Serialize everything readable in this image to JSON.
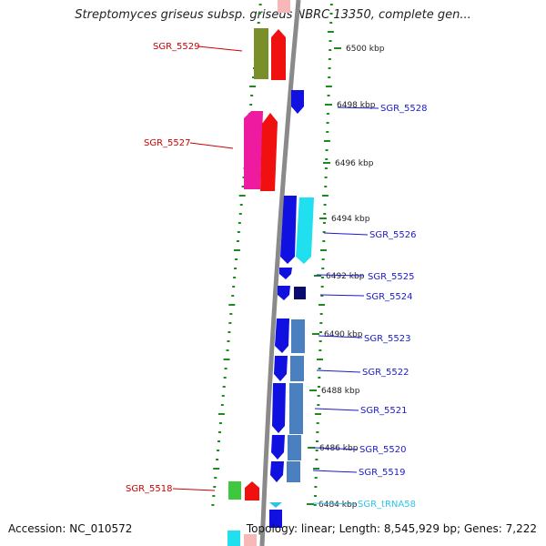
{
  "header": {
    "title": "Streptomyces griseus subsp. griseus NBRC 13350, complete gen..."
  },
  "footer": {
    "accession": "Accession: NC_010572",
    "summary": "Topology: linear; Length: 8,545,929 bp; Genes: 7,222"
  },
  "colors": {
    "backbone": "#8a8a8a",
    "tick": "#1f8a1f",
    "label_forward": "#cc0000",
    "label_reverse": "#1a1acc",
    "label_trna": "#2ec4e8"
  },
  "scale": {
    "unit": "kbp",
    "labels": [
      "6500 kbp",
      "6498 kbp",
      "6496 kbp",
      "6494 kbp",
      "6492 kbp",
      "6490 kbp",
      "6488 kbp",
      "6486 kbp",
      "6484 kbp"
    ]
  },
  "genes": [
    {
      "label": "SGR_5529",
      "strand": "+",
      "color": "#7a8f2a",
      "color2": "#f01010"
    },
    {
      "label": "SGR_5528",
      "strand": "-",
      "color": "#1010e0"
    },
    {
      "label": "SGR_5527",
      "strand": "+",
      "color": "#ee1aa0",
      "color2": "#f01010"
    },
    {
      "label": "SGR_5526",
      "strand": "-",
      "color": "#1010e0",
      "color2": "#20e0f0"
    },
    {
      "label": "SGR_5525",
      "strand": "-",
      "color": "#1010e0"
    },
    {
      "label": "SGR_5524",
      "strand": "-",
      "color": "#1010e0",
      "color2": "#0a0a70"
    },
    {
      "label": "SGR_5523",
      "strand": "-",
      "color": "#1010e0",
      "color2": "#4a7fc0"
    },
    {
      "label": "SGR_5522",
      "strand": "-",
      "color": "#1010e0"
    },
    {
      "label": "SGR_5521",
      "strand": "-",
      "color": "#1010e0",
      "color2": "#4a7fc0"
    },
    {
      "label": "SGR_5520",
      "strand": "-",
      "color": "#1010e0"
    },
    {
      "label": "SGR_5519",
      "strand": "-",
      "color": "#1010e0"
    },
    {
      "label": "SGR_5518",
      "strand": "+",
      "color": "#3ec83e",
      "color2": "#f01010"
    },
    {
      "label": "SGR_tRNA58",
      "strand": "-",
      "color": "#2ec4e8"
    }
  ]
}
